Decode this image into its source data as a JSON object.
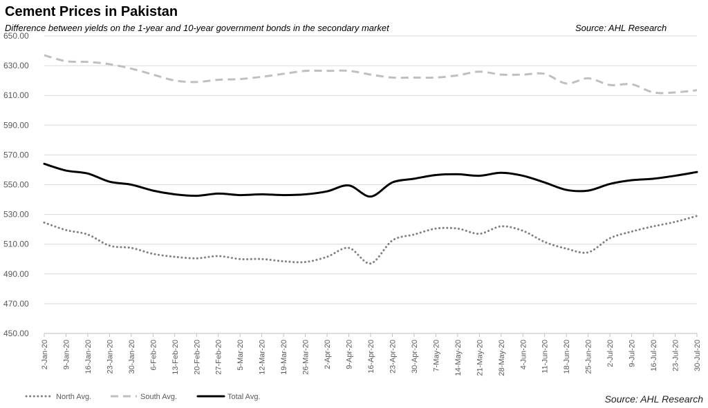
{
  "header": {
    "title": "Cement Prices in Pakistan",
    "subtitle": "Difference between yields on the 1-year and 10-year government bonds in the secondary market",
    "source_top": "Source: AHL Research",
    "source_bottom": "Source: AHL Research"
  },
  "chart_data": {
    "type": "line",
    "title": "Cement Prices in Pakistan",
    "subtitle": "Difference between yields on the 1-year and 10-year government bonds in the secondary market",
    "xlabel": "",
    "ylabel": "",
    "ylim": [
      450,
      650
    ],
    "y_ticks": [
      "450.00",
      "470.00",
      "490.00",
      "510.00",
      "530.00",
      "550.00",
      "570.00",
      "590.00",
      "610.00",
      "630.00",
      "650.00"
    ],
    "grid": "horizontal",
    "legend_position": "bottom-left",
    "x": [
      "2-Jan-20",
      "9-Jan-20",
      "16-Jan-20",
      "23-Jan-20",
      "30-Jan-20",
      "6-Feb-20",
      "13-Feb-20",
      "20-Feb-20",
      "27-Feb-20",
      "5-Mar-20",
      "12-Mar-20",
      "19-Mar-20",
      "26-Mar-20",
      "2-Apr-20",
      "9-Apr-20",
      "16-Apr-20",
      "23-Apr-20",
      "30-Apr-20",
      "7-May-20",
      "14-May-20",
      "21-May-20",
      "28-May-20",
      "4-Jun-20",
      "11-Jun-20",
      "18-Jun-20",
      "25-Jun-20",
      "2-Jul-20",
      "9-Jul-20",
      "16-Jul-20",
      "23-Jul-20",
      "30-Jul-20"
    ],
    "series": [
      {
        "name": "North Avg.",
        "style": "dotted",
        "color": "#7f7f7f",
        "values": [
          524.5,
          519.5,
          516.5,
          509.0,
          507.5,
          503.5,
          501.5,
          500.5,
          502.0,
          500.0,
          500.0,
          498.5,
          498.0,
          501.5,
          507.5,
          497.0,
          512.5,
          516.5,
          520.5,
          520.5,
          517.0,
          522.0,
          519.0,
          511.5,
          507.0,
          504.5,
          514.0,
          518.5,
          522.0,
          525.0,
          529.0
        ]
      },
      {
        "name": "South Avg.",
        "style": "dashed",
        "color": "#bfbfbf",
        "values": [
          637.0,
          633.0,
          632.5,
          631.0,
          628.0,
          624.0,
          620.0,
          619.0,
          620.5,
          621.0,
          622.5,
          624.5,
          626.5,
          626.5,
          626.5,
          624.0,
          622.0,
          622.0,
          622.0,
          623.5,
          626.0,
          624.0,
          624.0,
          624.5,
          618.0,
          621.5,
          617.0,
          617.5,
          612.0,
          612.0,
          613.5
        ]
      },
      {
        "name": "Total Avg.",
        "style": "solid",
        "color": "#000000",
        "values": [
          564.0,
          559.5,
          557.5,
          552.0,
          550.0,
          546.0,
          543.5,
          542.5,
          544.0,
          543.0,
          543.5,
          543.0,
          543.5,
          545.5,
          549.5,
          542.0,
          551.5,
          554.0,
          556.5,
          557.0,
          556.0,
          558.0,
          556.0,
          551.5,
          546.5,
          546.0,
          550.5,
          553.0,
          554.0,
          556.0,
          558.5
        ]
      }
    ]
  }
}
